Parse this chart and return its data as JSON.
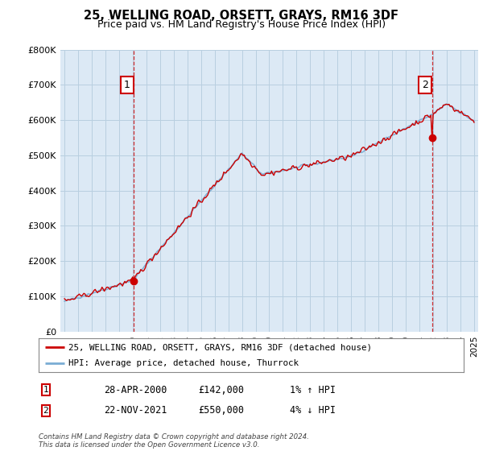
{
  "title": "25, WELLING ROAD, ORSETT, GRAYS, RM16 3DF",
  "subtitle": "Price paid vs. HM Land Registry's House Price Index (HPI)",
  "ylim": [
    0,
    800000
  ],
  "yticks": [
    0,
    100000,
    200000,
    300000,
    400000,
    500000,
    600000,
    700000,
    800000
  ],
  "ytick_labels": [
    "£0",
    "£100K",
    "£200K",
    "£300K",
    "£400K",
    "£500K",
    "£600K",
    "£700K",
    "£800K"
  ],
  "sale1_year_idx": 61,
  "sale1_price": 142000,
  "sale1_label": "1",
  "sale1_date": "28-APR-2000",
  "sale1_amount": "£142,000",
  "sale1_hpi": "1% ↑ HPI",
  "sale2_year_idx": 323,
  "sale2_price": 550000,
  "sale2_label": "2",
  "sale2_date": "22-NOV-2021",
  "sale2_amount": "£550,000",
  "sale2_hpi": "4% ↓ HPI",
  "red_color": "#cc0000",
  "blue_color": "#7aadd4",
  "plot_bg_color": "#dce9f5",
  "grid_color": "#b8cfe0",
  "background_color": "#ffffff",
  "legend_label_red": "25, WELLING ROAD, ORSETT, GRAYS, RM16 3DF (detached house)",
  "legend_label_blue": "HPI: Average price, detached house, Thurrock",
  "footnote": "Contains HM Land Registry data © Crown copyright and database right 2024.\nThis data is licensed under the Open Government Licence v3.0.",
  "x_start_year": 1995,
  "x_end_year": 2025,
  "num_months": 361
}
